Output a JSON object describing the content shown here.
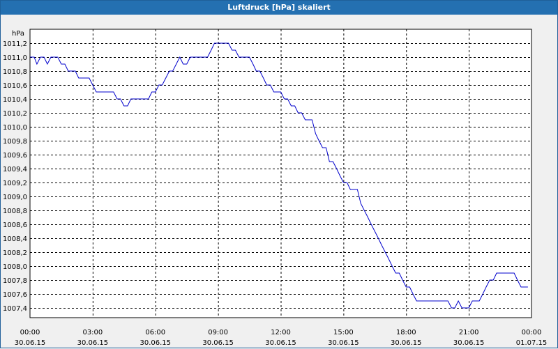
{
  "window": {
    "title": "Luftdruck [hPa] skaliert"
  },
  "colors": {
    "line": "#0000cc",
    "title_bar": "#2470b1",
    "grid": "#000000",
    "plot_bg": "#ffffff"
  },
  "chart_data": {
    "type": "line",
    "title": "Luftdruck [hPa] skaliert",
    "ylabel": "hPa",
    "xlabel": "",
    "ylim": [
      1007.2,
      1011.3
    ],
    "xlim_hours": [
      0,
      24
    ],
    "grid": true,
    "y_ticks": [
      "1011,2",
      "1011,0",
      "1010,8",
      "1010,6",
      "1010,4",
      "1010,2",
      "1010,0",
      "1009,8",
      "1009,6",
      "1009,4",
      "1009,2",
      "1009,0",
      "1008,8",
      "1008,6",
      "1008,4",
      "1008,2",
      "1008,0",
      "1007,8",
      "1007,6",
      "1007,4"
    ],
    "x_ticks": [
      {
        "time": "00:00",
        "date": "30.06.15"
      },
      {
        "time": "03:00",
        "date": "30.06.15"
      },
      {
        "time": "06:00",
        "date": "30.06.15"
      },
      {
        "time": "09:00",
        "date": "30.06.15"
      },
      {
        "time": "12:00",
        "date": "30.06.15"
      },
      {
        "time": "15:00",
        "date": "30.06.15"
      },
      {
        "time": "18:00",
        "date": "30.06.15"
      },
      {
        "time": "21:00",
        "date": "30.06.15"
      },
      {
        "time": "00:00",
        "date": "01.07.15"
      }
    ],
    "series": [
      {
        "points": [
          [
            0.0,
            1011.0
          ],
          [
            0.2,
            1011.0
          ],
          [
            0.33,
            1010.9
          ],
          [
            0.5,
            1011.0
          ],
          [
            0.67,
            1011.0
          ],
          [
            0.83,
            1010.9
          ],
          [
            1.0,
            1011.0
          ],
          [
            1.17,
            1011.0
          ],
          [
            1.33,
            1011.0
          ],
          [
            1.5,
            1010.9
          ],
          [
            1.67,
            1010.9
          ],
          [
            1.83,
            1010.8
          ],
          [
            2.17,
            1010.8
          ],
          [
            2.33,
            1010.7
          ],
          [
            2.83,
            1010.7
          ],
          [
            3.0,
            1010.6
          ],
          [
            3.17,
            1010.5
          ],
          [
            4.0,
            1010.5
          ],
          [
            4.17,
            1010.4
          ],
          [
            4.33,
            1010.4
          ],
          [
            4.5,
            1010.3
          ],
          [
            4.67,
            1010.3
          ],
          [
            4.83,
            1010.4
          ],
          [
            5.67,
            1010.4
          ],
          [
            5.83,
            1010.5
          ],
          [
            6.0,
            1010.5
          ],
          [
            6.17,
            1010.6
          ],
          [
            6.33,
            1010.6
          ],
          [
            6.5,
            1010.7
          ],
          [
            6.67,
            1010.8
          ],
          [
            6.83,
            1010.8
          ],
          [
            7.0,
            1010.9
          ],
          [
            7.17,
            1011.0
          ],
          [
            7.33,
            1010.9
          ],
          [
            7.5,
            1010.9
          ],
          [
            7.67,
            1011.0
          ],
          [
            8.5,
            1011.0
          ],
          [
            8.67,
            1011.1
          ],
          [
            8.83,
            1011.2
          ],
          [
            9.5,
            1011.2
          ],
          [
            9.67,
            1011.1
          ],
          [
            9.83,
            1011.1
          ],
          [
            10.0,
            1011.0
          ],
          [
            10.5,
            1011.0
          ],
          [
            10.67,
            1010.9
          ],
          [
            10.83,
            1010.8
          ],
          [
            11.0,
            1010.8
          ],
          [
            11.17,
            1010.7
          ],
          [
            11.33,
            1010.6
          ],
          [
            11.5,
            1010.6
          ],
          [
            11.67,
            1010.5
          ],
          [
            11.83,
            1010.5
          ],
          [
            12.0,
            1010.5
          ],
          [
            12.17,
            1010.4
          ],
          [
            12.33,
            1010.4
          ],
          [
            12.5,
            1010.3
          ],
          [
            12.67,
            1010.3
          ],
          [
            12.83,
            1010.2
          ],
          [
            13.0,
            1010.2
          ],
          [
            13.17,
            1010.1
          ],
          [
            13.5,
            1010.1
          ],
          [
            13.67,
            1009.9
          ],
          [
            13.83,
            1009.8
          ],
          [
            14.0,
            1009.7
          ],
          [
            14.17,
            1009.7
          ],
          [
            14.33,
            1009.5
          ],
          [
            14.5,
            1009.5
          ],
          [
            14.67,
            1009.4
          ],
          [
            14.83,
            1009.3
          ],
          [
            15.0,
            1009.2
          ],
          [
            15.17,
            1009.2
          ],
          [
            15.33,
            1009.1
          ],
          [
            15.67,
            1009.1
          ],
          [
            15.83,
            1008.9
          ],
          [
            16.0,
            1008.8
          ],
          [
            16.17,
            1008.7
          ],
          [
            16.33,
            1008.6
          ],
          [
            16.5,
            1008.5
          ],
          [
            16.67,
            1008.4
          ],
          [
            16.83,
            1008.3
          ],
          [
            17.0,
            1008.2
          ],
          [
            17.17,
            1008.1
          ],
          [
            17.33,
            1008.0
          ],
          [
            17.5,
            1007.9
          ],
          [
            17.67,
            1007.9
          ],
          [
            17.83,
            1007.8
          ],
          [
            18.0,
            1007.7
          ],
          [
            18.17,
            1007.7
          ],
          [
            18.33,
            1007.6
          ],
          [
            18.5,
            1007.5
          ],
          [
            20.0,
            1007.5
          ],
          [
            20.17,
            1007.4
          ],
          [
            20.33,
            1007.4
          ],
          [
            20.5,
            1007.5
          ],
          [
            20.67,
            1007.4
          ],
          [
            21.0,
            1007.4
          ],
          [
            21.17,
            1007.5
          ],
          [
            21.5,
            1007.5
          ],
          [
            21.67,
            1007.6
          ],
          [
            21.83,
            1007.7
          ],
          [
            22.0,
            1007.8
          ],
          [
            22.17,
            1007.8
          ],
          [
            22.33,
            1007.9
          ],
          [
            23.17,
            1007.9
          ],
          [
            23.33,
            1007.8
          ],
          [
            23.5,
            1007.7
          ],
          [
            23.83,
            1007.7
          ]
        ]
      }
    ]
  }
}
